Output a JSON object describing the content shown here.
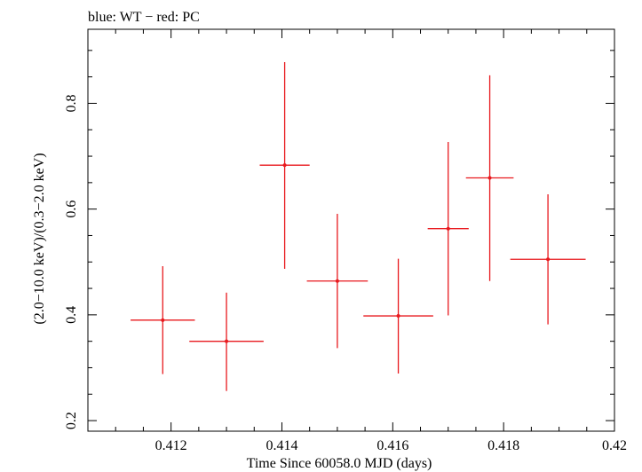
{
  "chart_data": {
    "type": "scatter",
    "title": "blue: WT − red: PC",
    "xlabel": "Time Since 60058.0 MJD (days)",
    "ylabel": "(2.0−10.0 keV)/(0.3−2.0 keV)",
    "xlim": [
      0.4105,
      0.42
    ],
    "ylim": [
      0.18,
      0.94
    ],
    "x_ticks": [
      0.412,
      0.414,
      0.416,
      0.418,
      0.42
    ],
    "x_tick_labels": [
      "0.412",
      "0.414",
      "0.416",
      "0.418",
      "0.42"
    ],
    "y_ticks": [
      0.2,
      0.4,
      0.6,
      0.8
    ],
    "y_tick_labels": [
      "0.2",
      "0.4",
      "0.6",
      "0.8"
    ],
    "grid": false,
    "series": [
      {
        "name": "PC",
        "color": "#e8191e",
        "points": [
          {
            "x": 0.41185,
            "y": 0.39,
            "xerr": 0.00058,
            "ylo": 0.288,
            "yhi": 0.492
          },
          {
            "x": 0.413,
            "y": 0.35,
            "xerr": 0.00067,
            "ylo": 0.256,
            "yhi": 0.442
          },
          {
            "x": 0.41405,
            "y": 0.683,
            "xerr": 0.00045,
            "ylo": 0.487,
            "yhi": 0.878
          },
          {
            "x": 0.415,
            "y": 0.464,
            "xerr": 0.00055,
            "ylo": 0.337,
            "yhi": 0.591
          },
          {
            "x": 0.4161,
            "y": 0.398,
            "xerr": 0.00063,
            "ylo": 0.289,
            "yhi": 0.506
          },
          {
            "x": 0.417,
            "y": 0.563,
            "xerr": 0.00037,
            "ylo": 0.399,
            "yhi": 0.727
          },
          {
            "x": 0.41775,
            "y": 0.659,
            "xerr": 0.00043,
            "ylo": 0.464,
            "yhi": 0.853
          },
          {
            "x": 0.4188,
            "y": 0.505,
            "xerr": 0.00068,
            "ylo": 0.382,
            "yhi": 0.628
          }
        ]
      }
    ]
  }
}
